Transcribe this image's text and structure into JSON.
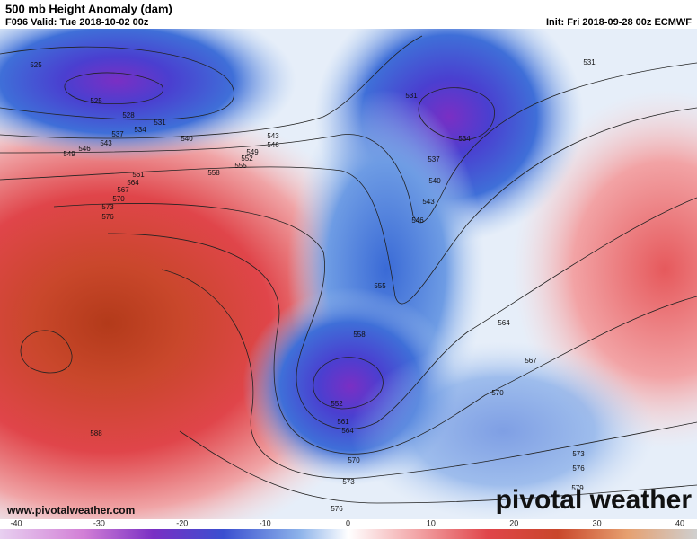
{
  "header": {
    "title": "500 mb Height Anomaly (dam)",
    "valid": "F096 Valid: Tue 2018-10-02 00z",
    "init": "Init: Fri 2018-09-28 00z ECMWF"
  },
  "footer": {
    "website": "www.pivotalweather.com",
    "brand": "pivotal weather"
  },
  "colorbar": {
    "ticks": [
      -40,
      -30,
      -20,
      -10,
      0,
      10,
      20,
      30,
      40
    ]
  },
  "contour_labels": [
    525,
    525,
    528,
    531,
    534,
    537,
    540,
    543,
    546,
    549,
    543,
    546,
    549,
    552,
    555,
    558,
    561,
    564,
    567,
    570,
    573,
    576,
    531,
    531,
    534,
    537,
    540,
    543,
    546,
    555,
    558,
    564,
    567,
    570,
    552,
    561,
    564,
    570,
    573,
    576,
    573,
    576,
    579,
    588
  ]
}
